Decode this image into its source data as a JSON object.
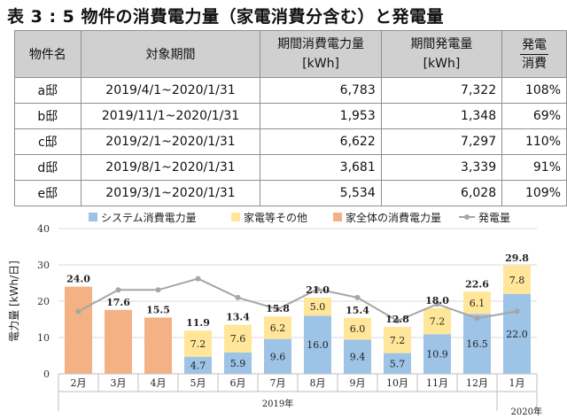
{
  "title": "表 3 : 5 物件の消費電力量（家電消費分含む）と発電量",
  "table": {
    "headers": {
      "name": "物件名",
      "period": "対象期間",
      "consumption": "期間消費電力量",
      "consumption_unit": "[kWh]",
      "generation": "期間発電量",
      "generation_unit": "[kWh]",
      "ratio_numerator": "発電",
      "ratio_denominator": "消費"
    },
    "rows": [
      {
        "name": "a邸",
        "period": "2019/4/1~2020/1/31",
        "consumption": "6,783",
        "generation": "7,322",
        "ratio": "108%"
      },
      {
        "name": "b邸",
        "period": "2019/11/1~2020/1/31",
        "consumption": "1,953",
        "generation": "1,348",
        "ratio": "69%"
      },
      {
        "name": "c邸",
        "period": "2019/2/1~2020/1/31",
        "consumption": "6,622",
        "generation": "7,297",
        "ratio": "110%"
      },
      {
        "name": "d邸",
        "period": "2019/8/1~2020/1/31",
        "consumption": "3,681",
        "generation": "3,339",
        "ratio": "91%"
      },
      {
        "name": "e邸",
        "period": "2019/3/1~2020/1/31",
        "consumption": "5,534",
        "generation": "6,028",
        "ratio": "109%"
      }
    ]
  },
  "chart_data": {
    "type": "bar",
    "categories": [
      "2月",
      "3月",
      "4月",
      "5月",
      "6月",
      "7月",
      "8月",
      "9月",
      "10月",
      "11月",
      "12月",
      "1月"
    ],
    "year_labels": [
      "2019年",
      "2020年"
    ],
    "ylabel": "電力量 [kWh/日]",
    "ylim": [
      0,
      40
    ],
    "yticks": [
      0,
      10,
      20,
      30,
      40
    ],
    "grid": true,
    "legend_position": "top",
    "series": [
      {
        "name": "システム消費電力量",
        "color": "#9dc3e6",
        "values": [
          null,
          null,
          null,
          4.7,
          5.9,
          9.6,
          16.0,
          9.4,
          5.7,
          10.9,
          16.5,
          22.0
        ]
      },
      {
        "name": "家電等その他",
        "color": "#ffe699",
        "values": [
          null,
          null,
          null,
          7.2,
          7.6,
          6.2,
          5.0,
          6.0,
          7.2,
          7.2,
          6.1,
          7.8
        ]
      },
      {
        "name": "家全体の消費電力量",
        "color": "#f4b183",
        "values": [
          24.0,
          17.6,
          15.5,
          null,
          null,
          null,
          null,
          null,
          null,
          null,
          null,
          null
        ]
      },
      {
        "name": "発電量",
        "color": "#a6a6a6",
        "type": "line",
        "values": [
          17.2,
          23.1,
          23.1,
          26.2,
          21.0,
          17.8,
          23.3,
          21.0,
          14.6,
          19.2,
          15.3,
          17.2
        ]
      }
    ],
    "total_labels": [
      "24.0",
      "17.6",
      "15.5",
      "11.9",
      "13.4",
      "15.8",
      "21.0",
      "15.4",
      "12.8",
      "18.0",
      "22.6",
      "29.8"
    ],
    "segment_labels": {
      "system": [
        "",
        "",
        "",
        "4.7",
        "5.9",
        "9.6",
        "16.0",
        "9.4",
        "5.7",
        "10.9",
        "16.5",
        "22.0"
      ],
      "other": [
        "",
        "",
        "",
        "7.2",
        "7.6",
        "6.2",
        "5.0",
        "6.0",
        "7.2",
        "7.2",
        "6.1",
        "7.8"
      ]
    }
  }
}
